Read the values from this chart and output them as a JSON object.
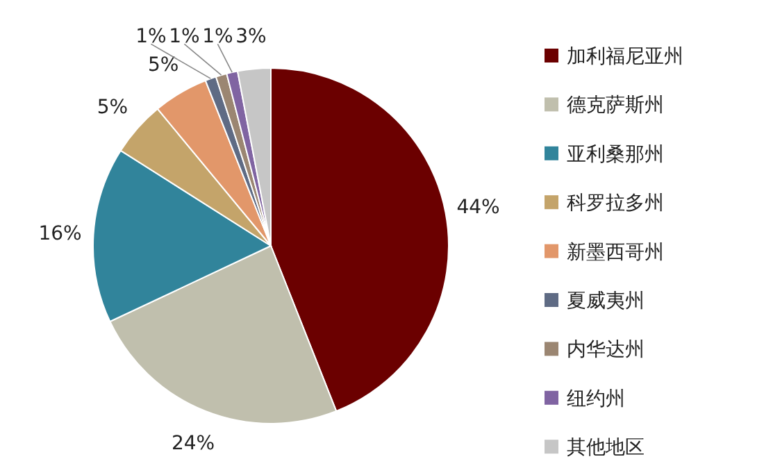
{
  "chart_data": {
    "type": "pie",
    "categories": [
      "加利福尼亚州",
      "德克萨斯州",
      "亚利桑那州",
      "科罗拉多州",
      "新墨西哥州",
      "夏威夷州",
      "内华达州",
      "纽约州",
      "其他地区"
    ],
    "values": [
      44,
      24,
      16,
      5,
      5,
      1,
      1,
      1,
      3
    ],
    "value_labels": [
      "44%",
      "24%",
      "16%",
      "5%",
      "5%",
      "1%",
      "1%",
      "1%",
      "3%"
    ],
    "colors": [
      "#6b0000",
      "#c0bfad",
      "#31849b",
      "#c4a46a",
      "#e2976a",
      "#5f6b84",
      "#9b8672",
      "#8064a2",
      "#c6c6c6"
    ],
    "legend": "right"
  }
}
